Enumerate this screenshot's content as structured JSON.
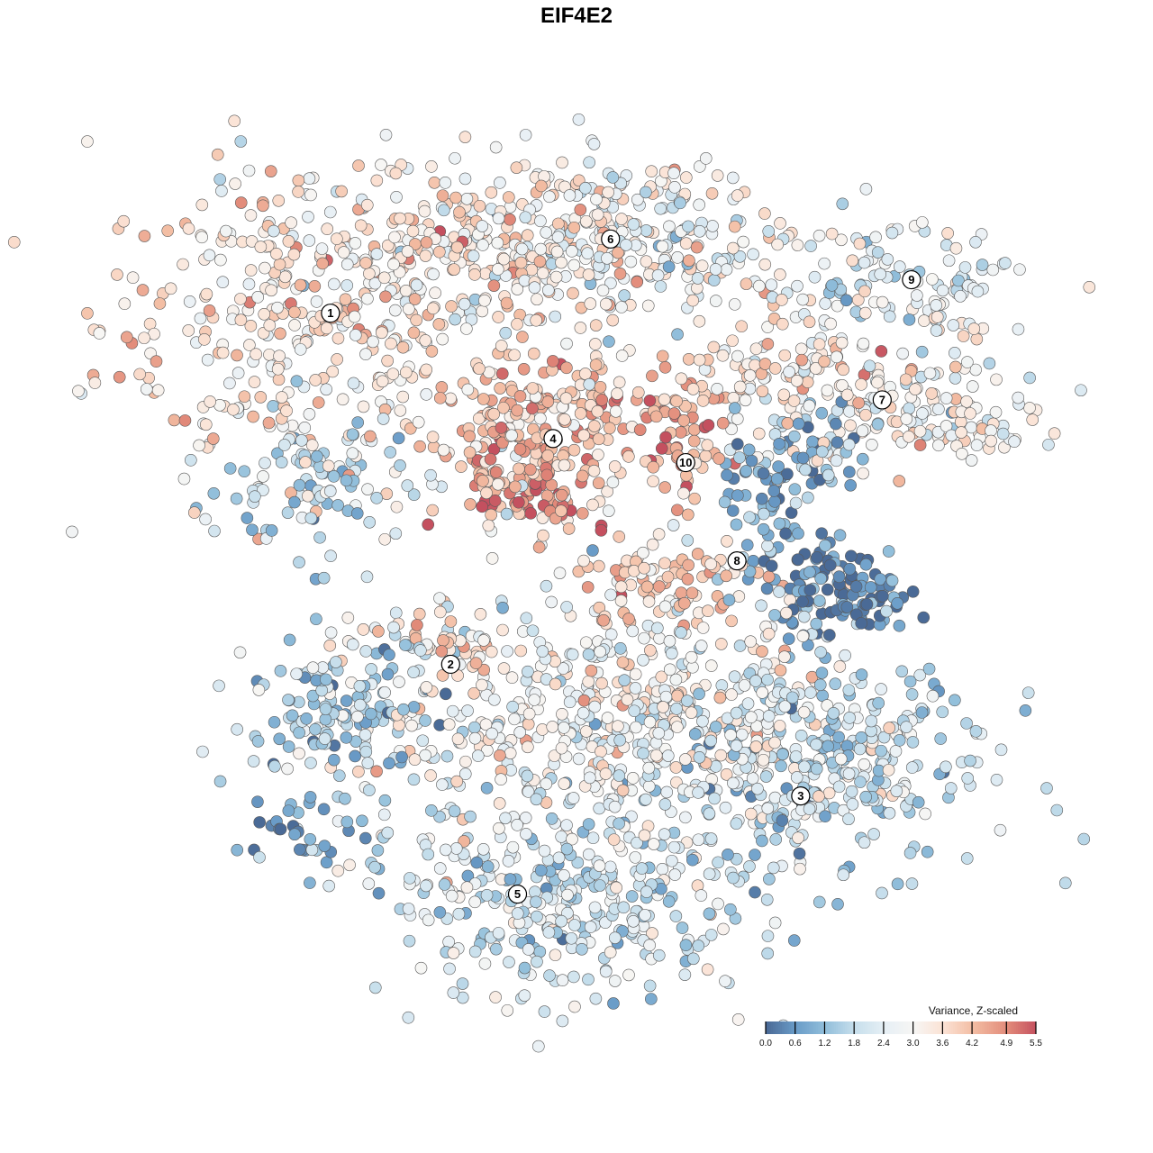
{
  "chart_data": {
    "type": "scatter",
    "title": "EIF4E2",
    "xlabel": "",
    "ylabel": "",
    "axes_visible": false,
    "grid": false,
    "xlim": [
      -40,
      40
    ],
    "ylim": [
      -40,
      40
    ],
    "color_scale": {
      "title": "Variance, Z-scaled",
      "ticks": [
        "0.0",
        "0.6",
        "1.2",
        "1.8",
        "2.4",
        "3.0",
        "3.6",
        "4.2",
        "4.9",
        "5.5"
      ],
      "tick_values": [
        0.0,
        0.6,
        1.2,
        1.8,
        2.4,
        3.0,
        3.6,
        4.2,
        4.9,
        5.5
      ],
      "colors": [
        "#4a6a96",
        "#6a9cc8",
        "#92bfdb",
        "#c7dfec",
        "#e6eff5",
        "#f7f6f4",
        "#fbe2d4",
        "#f3bda3",
        "#e28b7a",
        "#c4505f"
      ],
      "placement": "bottom-right"
    },
    "cluster_labels": [
      {
        "label": "1",
        "x": -25.7,
        "y": 25.2
      },
      {
        "label": "2",
        "x": -14.2,
        "y": -8.4
      },
      {
        "label": "3",
        "x": 19.3,
        "y": -21.0
      },
      {
        "label": "4",
        "x": -4.4,
        "y": 13.2
      },
      {
        "label": "5",
        "x": -7.8,
        "y": -30.4
      },
      {
        "label": "6",
        "x": 1.1,
        "y": 32.3
      },
      {
        "label": "7",
        "x": 27.1,
        "y": 16.9
      },
      {
        "label": "8",
        "x": 13.2,
        "y": 1.5
      },
      {
        "label": "9",
        "x": 29.9,
        "y": 28.4
      },
      {
        "label": "10",
        "x": 8.3,
        "y": 10.9
      }
    ],
    "point_groups": [
      {
        "x": -28.9,
        "y": 24.1,
        "sx": 9.5,
        "sy": 7.8,
        "mean": 3.4,
        "n": 350
      },
      {
        "x": -9.9,
        "y": 31.9,
        "sx": 11.2,
        "sy": 4.3,
        "mean": 3.3,
        "n": 300
      },
      {
        "x": 3.0,
        "y": 31.9,
        "sx": 8.6,
        "sy": 4.3,
        "mean": 2.6,
        "n": 200
      },
      {
        "x": -27.2,
        "y": 8.6,
        "sx": 4.3,
        "sy": 3.4,
        "mean": 1.5,
        "n": 80
      },
      {
        "x": 27.2,
        "y": 28.4,
        "sx": 6.9,
        "sy": 2.6,
        "mean": 2.2,
        "n": 100
      },
      {
        "x": 33.2,
        "y": 24.1,
        "sx": 1.7,
        "sy": 4.3,
        "mean": 2.8,
        "n": 40
      },
      {
        "x": 29.7,
        "y": 15.5,
        "sx": 7.8,
        "sy": 2.6,
        "mean": 3.0,
        "n": 150
      },
      {
        "x": 18.5,
        "y": 20.7,
        "sx": 5.2,
        "sy": 2.6,
        "mean": 3.5,
        "n": 80
      },
      {
        "x": -6.5,
        "y": 12.9,
        "sx": 4.7,
        "sy": 4.0,
        "mean": 4.0,
        "n": 250
      },
      {
        "x": -6.0,
        "y": 6.9,
        "sx": 2.6,
        "sy": 1.2,
        "mean": 5.3,
        "n": 30
      },
      {
        "x": 8.2,
        "y": 12.5,
        "sx": 2.2,
        "sy": 3.0,
        "mean": 4.6,
        "n": 50
      },
      {
        "x": 6.5,
        "y": 17.7,
        "sx": 5.2,
        "sy": 1.2,
        "mean": 4.2,
        "n": 40
      },
      {
        "x": 22.8,
        "y": -1.3,
        "sx": 3.4,
        "sy": 2.2,
        "mean": 0.3,
        "n": 120
      },
      {
        "x": 15.9,
        "y": 6.9,
        "sx": 2.6,
        "sy": 3.9,
        "mean": 0.9,
        "n": 70
      },
      {
        "x": 21.1,
        "y": 12.1,
        "sx": 2.6,
        "sy": 1.7,
        "mean": 1.2,
        "n": 40
      },
      {
        "x": 6.5,
        "y": -0.9,
        "sx": 4.3,
        "sy": 2.2,
        "mean": 3.8,
        "n": 80
      },
      {
        "x": -23.7,
        "y": -12.9,
        "sx": 5.2,
        "sy": 3.4,
        "mean": 1.5,
        "n": 150
      },
      {
        "x": -15.1,
        "y": -6.0,
        "sx": 2.6,
        "sy": 1.7,
        "mean": 3.5,
        "n": 30
      },
      {
        "x": 1.3,
        "y": -12.9,
        "sx": 11.2,
        "sy": 5.6,
        "mean": 2.9,
        "n": 500
      },
      {
        "x": 20.3,
        "y": -18.1,
        "sx": 8.6,
        "sy": 5.2,
        "mean": 1.8,
        "n": 350
      },
      {
        "x": -3.9,
        "y": -31.0,
        "sx": 9.5,
        "sy": 4.7,
        "mean": 2.0,
        "n": 350
      },
      {
        "x": -28.0,
        "y": -24.1,
        "sx": 3.4,
        "sy": 1.7,
        "mean": 0.8,
        "n": 35
      },
      {
        "x": -1.3,
        "y": 1.7,
        "sx": 15,
        "sy": 5,
        "mean": 2.0,
        "n": 20
      }
    ]
  }
}
